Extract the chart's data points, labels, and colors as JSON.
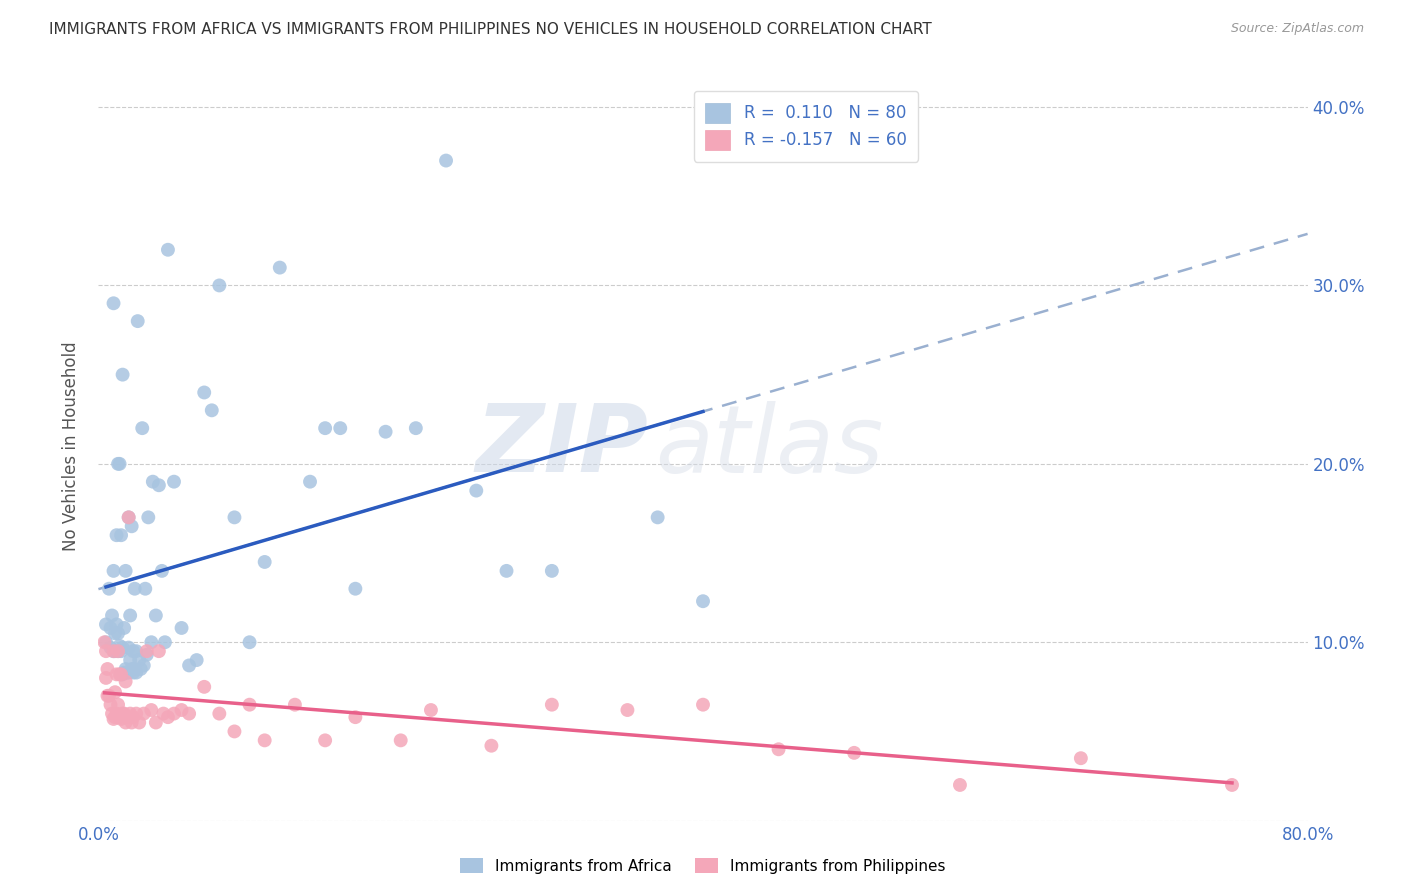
{
  "title": "IMMIGRANTS FROM AFRICA VS IMMIGRANTS FROM PHILIPPINES NO VEHICLES IN HOUSEHOLD CORRELATION CHART",
  "source": "Source: ZipAtlas.com",
  "ylabel": "No Vehicles in Household",
  "xlim": [
    0.0,
    0.8
  ],
  "ylim": [
    0.0,
    0.42
  ],
  "x_ticks": [
    0.0,
    0.1,
    0.2,
    0.3,
    0.4,
    0.5,
    0.6,
    0.7,
    0.8
  ],
  "y_ticks": [
    0.0,
    0.1,
    0.2,
    0.3,
    0.4
  ],
  "africa_R": 0.11,
  "africa_N": 80,
  "philippines_R": -0.157,
  "philippines_N": 60,
  "africa_color": "#a8c4e0",
  "philippines_color": "#f4a7b9",
  "africa_line_color": "#2b5bbf",
  "philippines_line_color": "#e8608a",
  "trendline_dashed_color": "#9ab0d0",
  "background_color": "#ffffff",
  "watermark_zip": "ZIP",
  "watermark_atlas": "atlas",
  "africa_x": [
    0.005,
    0.005,
    0.007,
    0.008,
    0.008,
    0.009,
    0.01,
    0.01,
    0.01,
    0.011,
    0.011,
    0.012,
    0.012,
    0.013,
    0.013,
    0.013,
    0.014,
    0.014,
    0.015,
    0.015,
    0.015,
    0.016,
    0.016,
    0.016,
    0.017,
    0.017,
    0.018,
    0.018,
    0.019,
    0.02,
    0.02,
    0.02,
    0.021,
    0.021,
    0.022,
    0.022,
    0.023,
    0.023,
    0.024,
    0.024,
    0.025,
    0.025,
    0.026,
    0.027,
    0.028,
    0.029,
    0.03,
    0.031,
    0.032,
    0.033,
    0.035,
    0.036,
    0.038,
    0.04,
    0.042,
    0.044,
    0.046,
    0.05,
    0.055,
    0.06,
    0.065,
    0.07,
    0.075,
    0.08,
    0.09,
    0.1,
    0.11,
    0.12,
    0.14,
    0.15,
    0.16,
    0.17,
    0.19,
    0.21,
    0.23,
    0.25,
    0.27,
    0.3,
    0.37,
    0.4
  ],
  "africa_y": [
    0.1,
    0.11,
    0.13,
    0.097,
    0.108,
    0.115,
    0.095,
    0.14,
    0.29,
    0.095,
    0.105,
    0.11,
    0.16,
    0.095,
    0.105,
    0.2,
    0.098,
    0.2,
    0.082,
    0.095,
    0.16,
    0.082,
    0.097,
    0.25,
    0.083,
    0.108,
    0.085,
    0.14,
    0.083,
    0.083,
    0.097,
    0.17,
    0.09,
    0.115,
    0.085,
    0.165,
    0.083,
    0.095,
    0.085,
    0.13,
    0.083,
    0.095,
    0.28,
    0.09,
    0.085,
    0.22,
    0.087,
    0.13,
    0.093,
    0.17,
    0.1,
    0.19,
    0.115,
    0.188,
    0.14,
    0.1,
    0.32,
    0.19,
    0.108,
    0.087,
    0.09,
    0.24,
    0.23,
    0.3,
    0.17,
    0.1,
    0.145,
    0.31,
    0.19,
    0.22,
    0.22,
    0.13,
    0.218,
    0.22,
    0.37,
    0.185,
    0.14,
    0.14,
    0.17,
    0.123
  ],
  "philippines_x": [
    0.004,
    0.005,
    0.005,
    0.006,
    0.006,
    0.007,
    0.008,
    0.009,
    0.01,
    0.01,
    0.011,
    0.011,
    0.012,
    0.012,
    0.013,
    0.013,
    0.014,
    0.014,
    0.015,
    0.015,
    0.016,
    0.017,
    0.018,
    0.018,
    0.019,
    0.02,
    0.021,
    0.022,
    0.023,
    0.025,
    0.027,
    0.03,
    0.032,
    0.035,
    0.038,
    0.04,
    0.043,
    0.046,
    0.05,
    0.055,
    0.06,
    0.07,
    0.08,
    0.09,
    0.1,
    0.11,
    0.13,
    0.15,
    0.17,
    0.2,
    0.22,
    0.26,
    0.3,
    0.35,
    0.4,
    0.45,
    0.5,
    0.57,
    0.65,
    0.75
  ],
  "philippines_y": [
    0.1,
    0.08,
    0.095,
    0.07,
    0.085,
    0.07,
    0.065,
    0.06,
    0.057,
    0.095,
    0.058,
    0.072,
    0.06,
    0.082,
    0.065,
    0.095,
    0.058,
    0.082,
    0.057,
    0.082,
    0.06,
    0.06,
    0.055,
    0.078,
    0.058,
    0.17,
    0.06,
    0.055,
    0.058,
    0.06,
    0.055,
    0.06,
    0.095,
    0.062,
    0.055,
    0.095,
    0.06,
    0.058,
    0.06,
    0.062,
    0.06,
    0.075,
    0.06,
    0.05,
    0.065,
    0.045,
    0.065,
    0.045,
    0.058,
    0.045,
    0.062,
    0.042,
    0.065,
    0.062,
    0.065,
    0.04,
    0.038,
    0.02,
    0.035,
    0.02
  ]
}
